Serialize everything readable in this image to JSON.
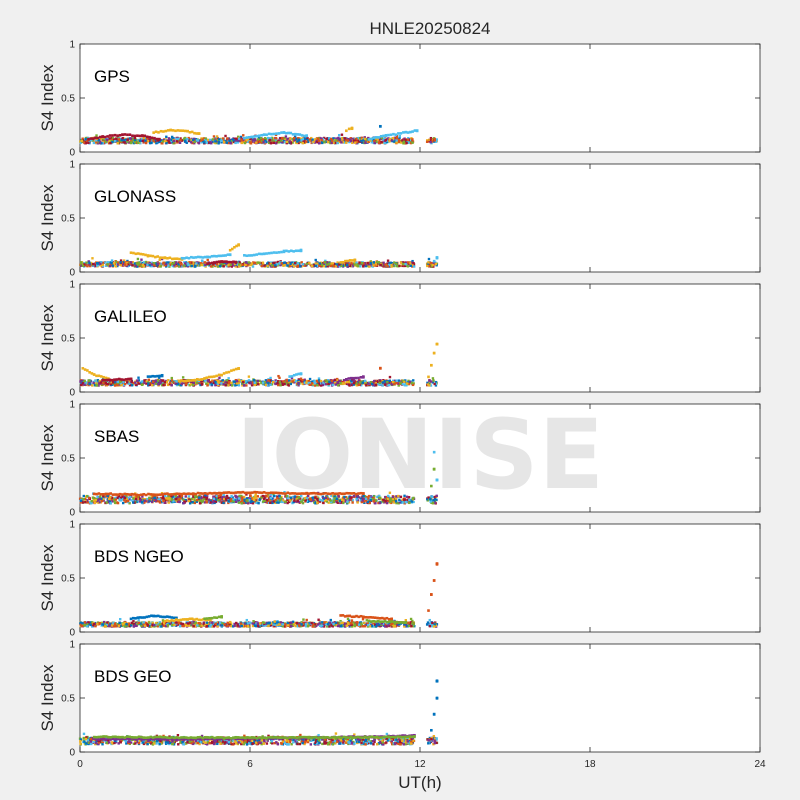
{
  "chart_data": {
    "type": "scatter",
    "title": "HNLE20250824",
    "xlabel": "UT(h)",
    "ylabel": "S4 Index",
    "xlim": [
      0,
      24
    ],
    "ylim": [
      0,
      1
    ],
    "xticks": [
      "0",
      "6",
      "12",
      "18",
      "24"
    ],
    "yticks": [
      "0",
      "0.5",
      "1"
    ],
    "watermark": "IONISE",
    "series_colors": [
      "#0072BD",
      "#D95319",
      "#EDB120",
      "#7E2F8E",
      "#77AC30",
      "#4DBEEE",
      "#A2142F"
    ],
    "panels": [
      {
        "label": "GPS",
        "baseline": [
          0.08,
          0.13
        ],
        "segments": [
          {
            "color": "#A2142F",
            "x": [
              0.3,
              0.8,
              1.5,
              2.2,
              2.8
            ],
            "y": [
              0.12,
              0.14,
              0.16,
              0.15,
              0.12
            ]
          },
          {
            "color": "#EDB120",
            "x": [
              2.6,
              3.2,
              3.8,
              4.2
            ],
            "y": [
              0.18,
              0.2,
              0.19,
              0.17
            ]
          },
          {
            "color": "#4DBEEE",
            "x": [
              5.8,
              6.5,
              7.2,
              8.0
            ],
            "y": [
              0.13,
              0.16,
              0.18,
              0.15
            ]
          },
          {
            "color": "#4DBEEE",
            "x": [
              10.2,
              10.8,
              11.5,
              11.9
            ],
            "y": [
              0.12,
              0.15,
              0.18,
              0.2
            ]
          },
          {
            "color": "#EDB120",
            "x": [
              9.4,
              9.6
            ],
            "y": [
              0.2,
              0.22
            ]
          },
          {
            "color": "#0072BD",
            "x": [
              10.6
            ],
            "y": [
              0.24
            ]
          }
        ]
      },
      {
        "label": "GLONASS",
        "baseline": [
          0.05,
          0.09
        ],
        "segments": [
          {
            "color": "#EDB120",
            "x": [
              1.8,
              2.4,
              3.0,
              3.6
            ],
            "y": [
              0.18,
              0.15,
              0.13,
              0.12
            ]
          },
          {
            "color": "#4DBEEE",
            "x": [
              3.6,
              4.5,
              5.3
            ],
            "y": [
              0.13,
              0.14,
              0.16
            ]
          },
          {
            "color": "#EDB120",
            "x": [
              5.3,
              5.6
            ],
            "y": [
              0.2,
              0.25
            ]
          },
          {
            "color": "#4DBEEE",
            "x": [
              5.8,
              6.5,
              7.2,
              7.8
            ],
            "y": [
              0.15,
              0.17,
              0.19,
              0.2
            ]
          },
          {
            "color": "#A2142F",
            "x": [
              4.5,
              5.0,
              5.5
            ],
            "y": [
              0.08,
              0.1,
              0.09
            ]
          },
          {
            "color": "#EDB120",
            "x": [
              9.2,
              9.7
            ],
            "y": [
              0.09,
              0.11
            ]
          },
          {
            "color": "#4DBEEE",
            "x": [
              12.5,
              12.6
            ],
            "y": [
              0.1,
              0.13
            ]
          }
        ]
      },
      {
        "label": "GALILEO",
        "baseline": [
          0.06,
          0.11
        ],
        "segments": [
          {
            "color": "#EDB120",
            "x": [
              0.1,
              0.5,
              1.0
            ],
            "y": [
              0.22,
              0.16,
              0.12
            ]
          },
          {
            "color": "#EDB120",
            "x": [
              3.5,
              4.3,
              5.0,
              5.6
            ],
            "y": [
              0.1,
              0.12,
              0.16,
              0.22
            ]
          },
          {
            "color": "#0072BD",
            "x": [
              2.4,
              2.9
            ],
            "y": [
              0.14,
              0.15
            ]
          },
          {
            "color": "#A2142F",
            "x": [
              0.8,
              1.8
            ],
            "y": [
              0.11,
              0.12
            ]
          },
          {
            "color": "#4DBEEE",
            "x": [
              7.4,
              7.8
            ],
            "y": [
              0.14,
              0.17
            ]
          },
          {
            "color": "#7E2F8E",
            "x": [
              9.4,
              10.0
            ],
            "y": [
              0.12,
              0.14
            ]
          },
          {
            "color": "#D95319",
            "x": [
              10.6
            ],
            "y": [
              0.22
            ]
          },
          {
            "color": "#EDB120",
            "x": [
              12.3,
              12.4,
              12.5,
              12.6
            ],
            "y": [
              0.14,
              0.25,
              0.36,
              0.44
            ]
          }
        ]
      },
      {
        "label": "SBAS",
        "baseline": [
          0.08,
          0.15
        ],
        "segments": [
          {
            "color": "#D95319",
            "x": [
              0.5,
              2.0,
              4.0,
              6.0,
              8.0,
              10.0
            ],
            "y": [
              0.17,
              0.16,
              0.17,
              0.18,
              0.17,
              0.17
            ]
          },
          {
            "color": "#4DBEEE",
            "x": [
              12.5,
              12.6
            ],
            "y": [
              0.55,
              0.3
            ]
          },
          {
            "color": "#77AC30",
            "x": [
              12.4,
              12.5
            ],
            "y": [
              0.24,
              0.4
            ]
          }
        ]
      },
      {
        "label": "BDS NGEO",
        "baseline": [
          0.05,
          0.09
        ],
        "segments": [
          {
            "color": "#0072BD",
            "x": [
              1.8,
              2.6,
              3.4
            ],
            "y": [
              0.12,
              0.15,
              0.13
            ]
          },
          {
            "color": "#EDB120",
            "x": [
              3.0,
              3.8,
              4.6
            ],
            "y": [
              0.1,
              0.12,
              0.11
            ]
          },
          {
            "color": "#77AC30",
            "x": [
              4.4,
              5.0
            ],
            "y": [
              0.12,
              0.14
            ]
          },
          {
            "color": "#D95319",
            "x": [
              9.2,
              10.0,
              11.0
            ],
            "y": [
              0.15,
              0.14,
              0.12
            ]
          },
          {
            "color": "#77AC30",
            "x": [
              10.2,
              11.5
            ],
            "y": [
              0.1,
              0.09
            ]
          },
          {
            "color": "#D95319",
            "x": [
              12.3,
              12.4,
              12.5,
              12.6
            ],
            "y": [
              0.2,
              0.35,
              0.48,
              0.63
            ]
          }
        ]
      },
      {
        "label": "BDS GEO",
        "baseline": [
          0.07,
          0.14
        ],
        "segments": [
          {
            "color": "#7E2F8E",
            "x": [
              0.5,
              4.0,
              8.0,
              11.8
            ],
            "y": [
              0.12,
              0.12,
              0.13,
              0.15
            ]
          },
          {
            "color": "#77AC30",
            "x": [
              0.5,
              6.0,
              11.8
            ],
            "y": [
              0.14,
              0.13,
              0.14
            ]
          },
          {
            "color": "#0072BD",
            "x": [
              12.4,
              12.5,
              12.6,
              12.6
            ],
            "y": [
              0.2,
              0.35,
              0.5,
              0.66
            ]
          }
        ]
      }
    ]
  }
}
